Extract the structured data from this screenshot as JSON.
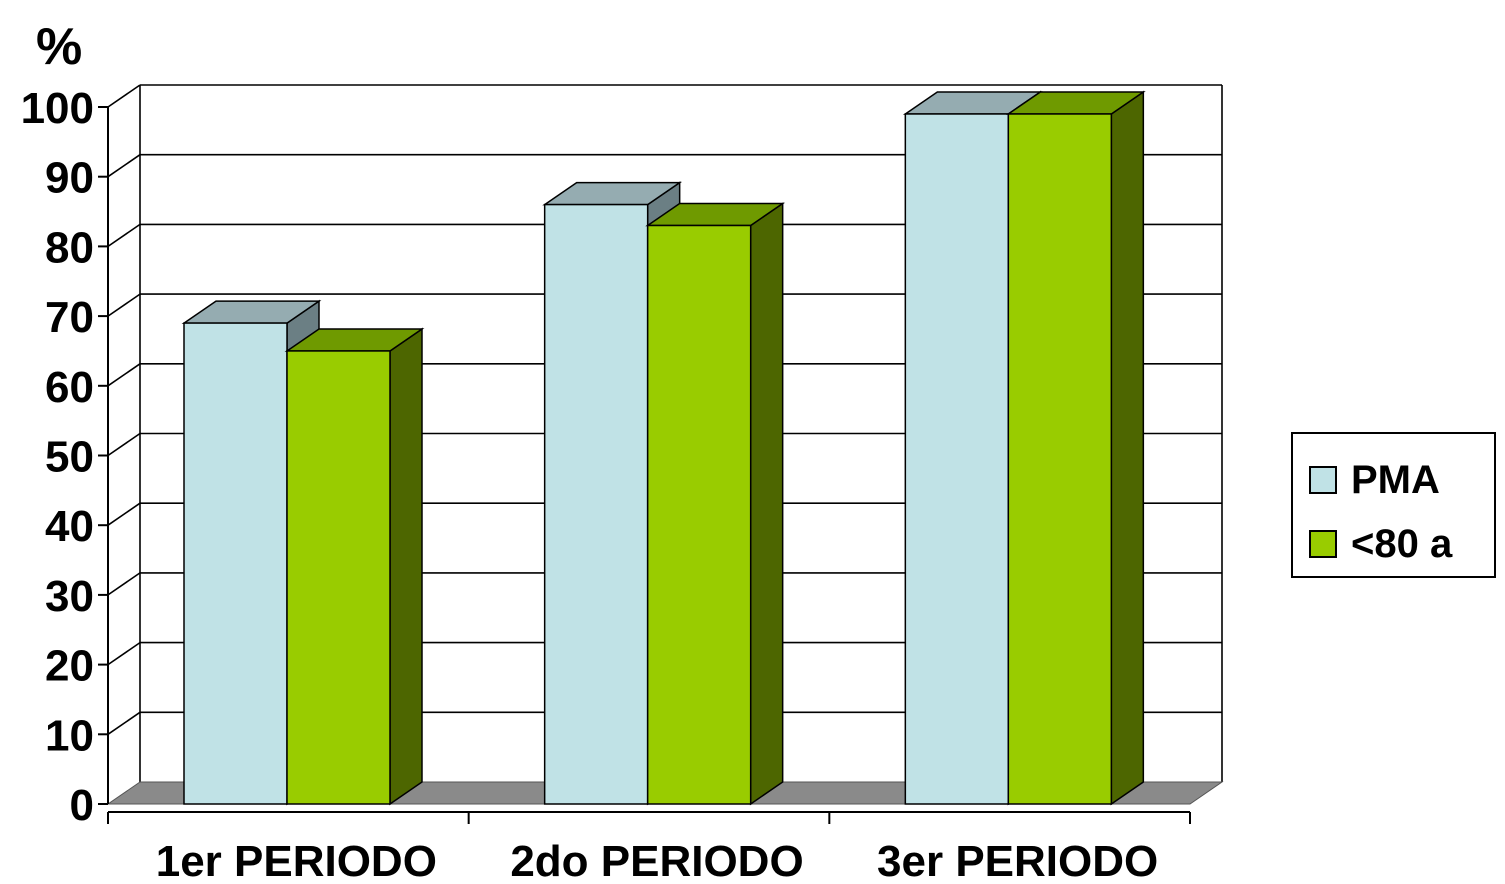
{
  "chart_data": {
    "type": "bar",
    "ylabel": "%",
    "categories": [
      "1er PERIODO",
      "2do PERIODO",
      "3er PERIODO"
    ],
    "series": [
      {
        "name": "PMA",
        "values": [
          69,
          86,
          99
        ]
      },
      {
        "name": "<80 a",
        "values": [
          65,
          83,
          99
        ]
      }
    ],
    "ylim": [
      0,
      100
    ],
    "yticks": [
      0,
      10,
      20,
      30,
      40,
      50,
      60,
      70,
      80,
      90,
      100
    ],
    "grid": true,
    "legend": "right",
    "three_d": true
  },
  "colors": {
    "PMA": {
      "front": "#c0e2e6",
      "top": "#95acb1",
      "side": "#6b7f84"
    },
    "<80 a": {
      "front": "#99cc00",
      "top": "#6f9a00",
      "side": "#4d6600"
    },
    "floor": "#8a8a8a",
    "grid": "#000000"
  }
}
